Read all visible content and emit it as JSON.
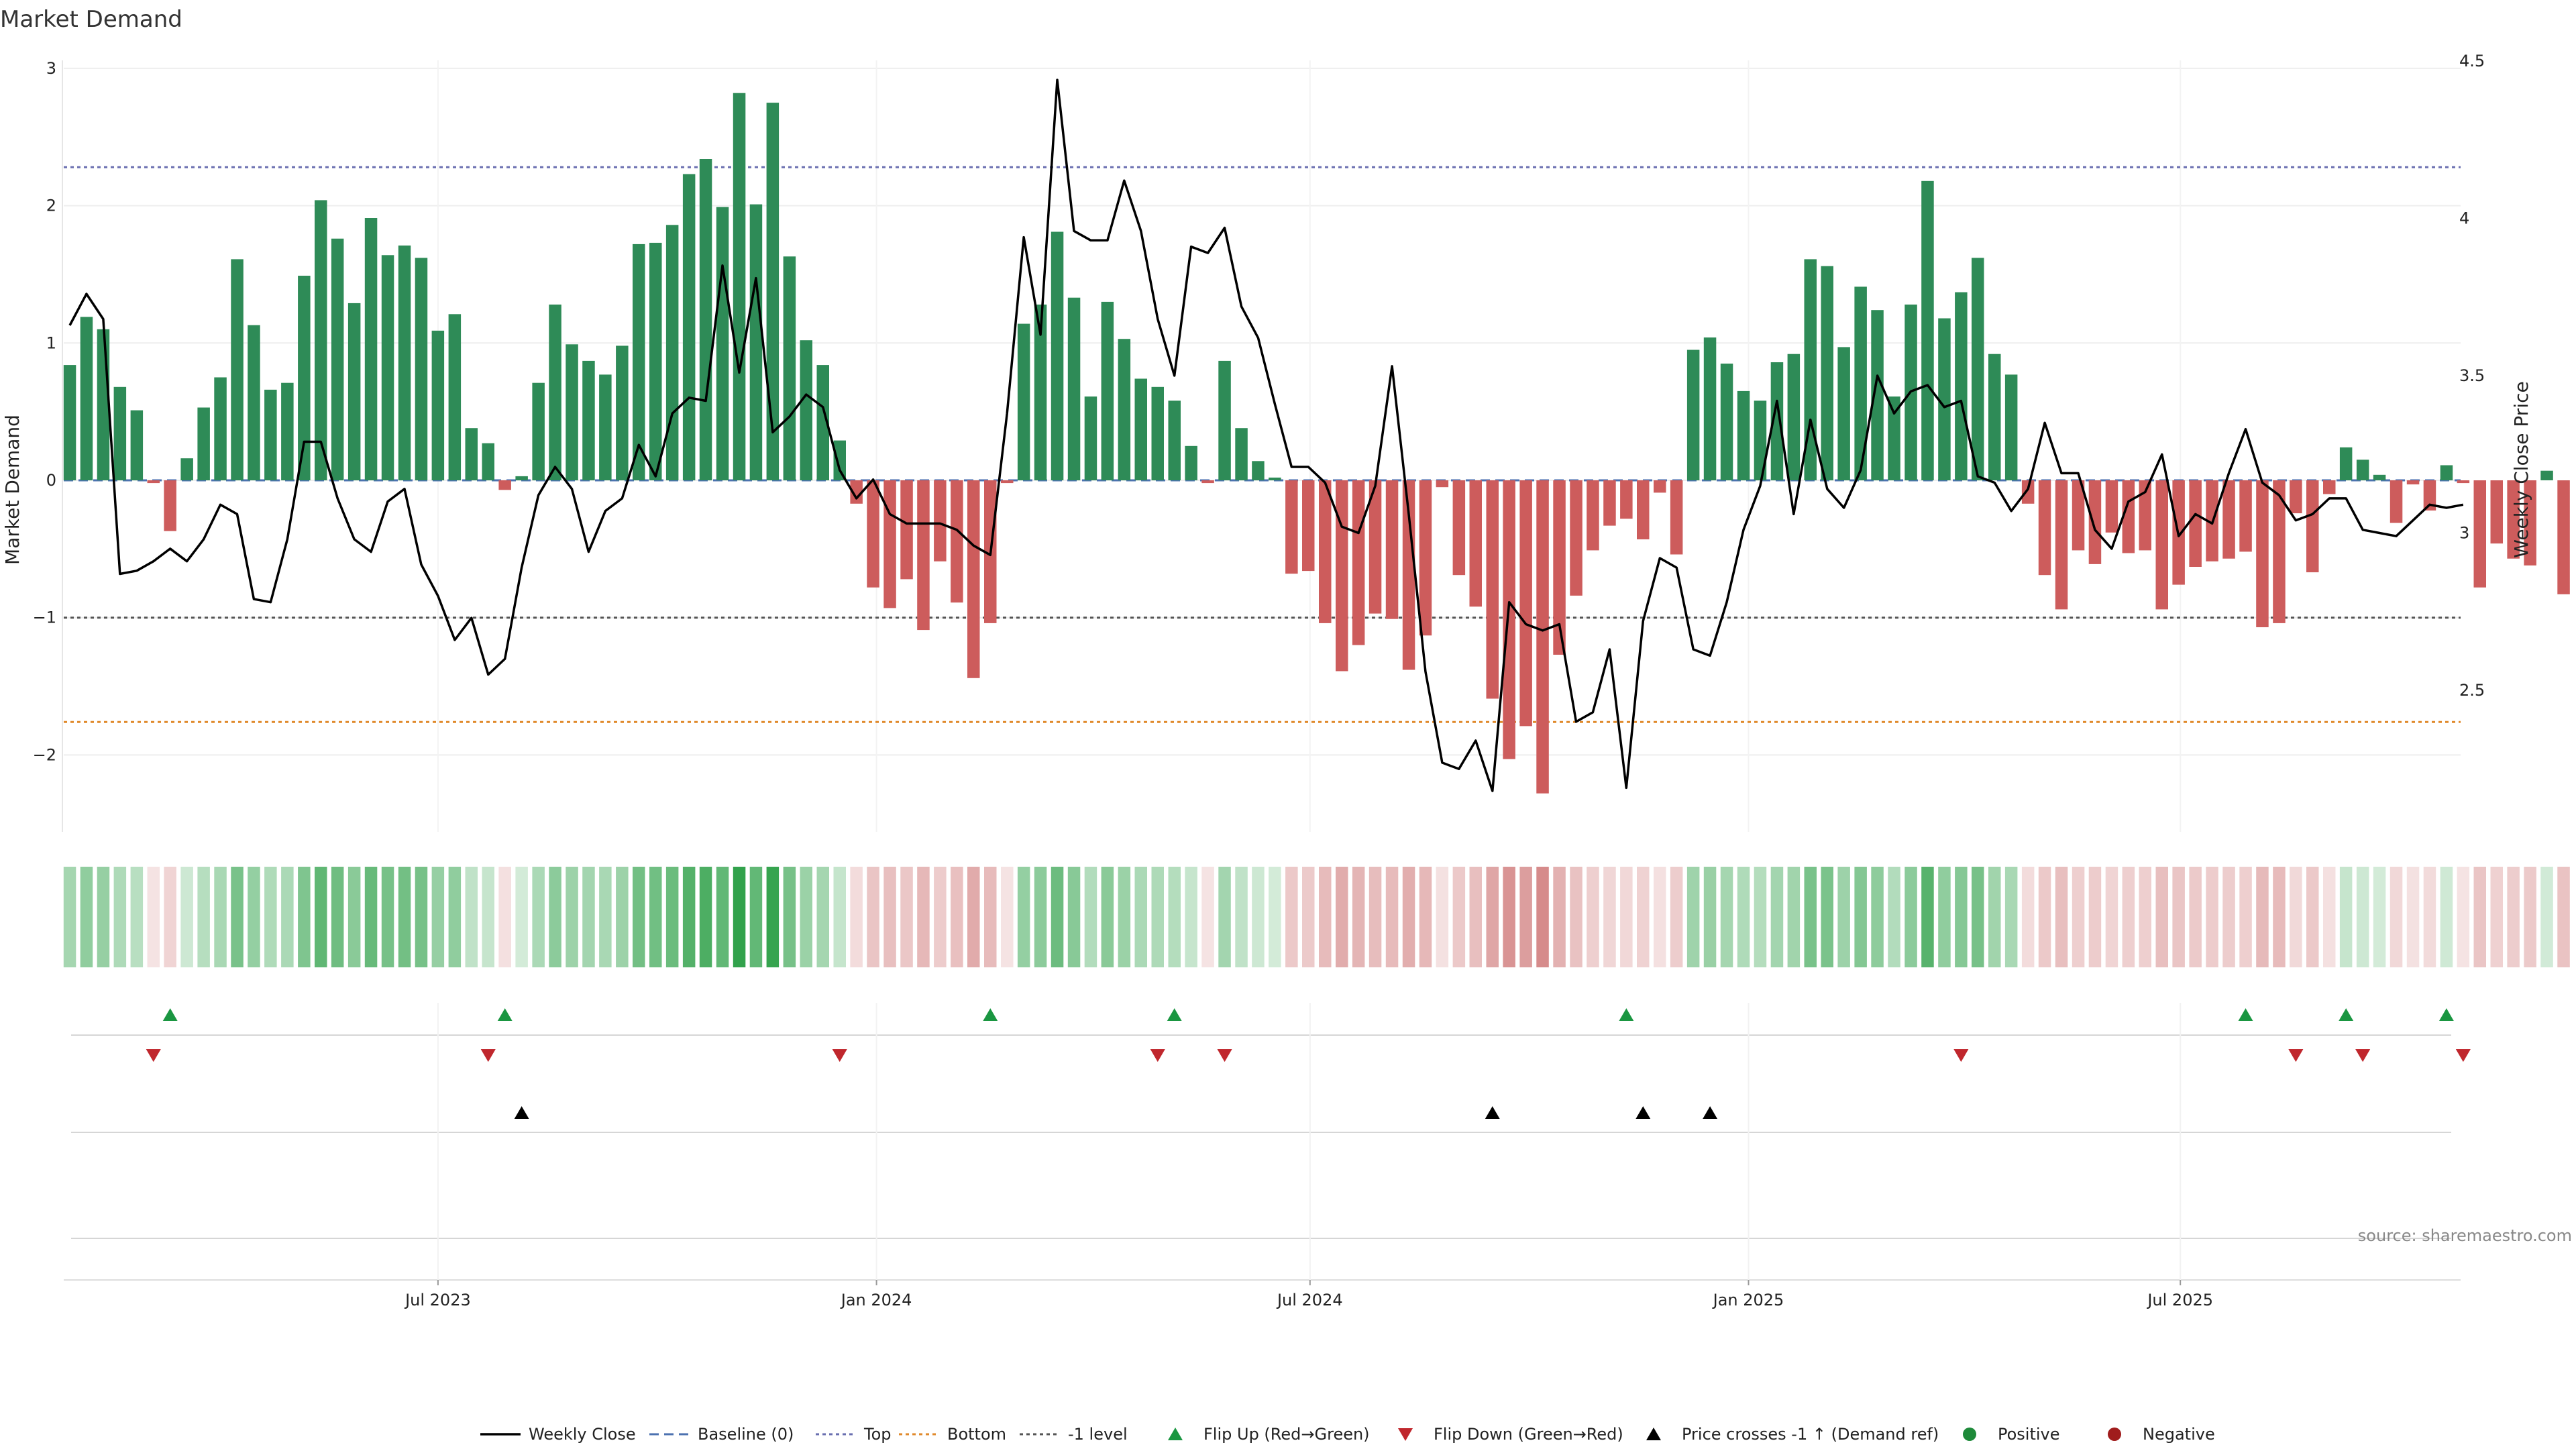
{
  "chart_data": {
    "type": "bar",
    "title": "Market Demand",
    "ylabel_left": "Market Demand",
    "ylabel_right": "Weekly Close Price",
    "source": "source: sharemaestro.com",
    "left_axis": {
      "range": [
        -2.55,
        3.0
      ],
      "ticks": [
        "3",
        "2",
        "1",
        "0",
        "−1",
        "−2"
      ],
      "tick_values": [
        3,
        2,
        1,
        0,
        -1,
        -2
      ]
    },
    "right_axis": {
      "range": [
        2.0,
        4.5
      ],
      "ticks": [
        "4.5",
        "4",
        "3.5",
        "3",
        "2.5"
      ],
      "tick_values": [
        4.5,
        4.0,
        3.5,
        3.0,
        2.5
      ]
    },
    "x_axis": {
      "start_week": 0,
      "weeks": 144,
      "ticks": [
        {
          "label": "Jul 2023",
          "week": 22
        },
        {
          "label": "Jan 2024",
          "week": 48.2
        },
        {
          "label": "Jul 2024",
          "week": 74.1
        },
        {
          "label": "Jan 2025",
          "week": 100.3
        },
        {
          "label": "Jul 2025",
          "week": 126.1
        }
      ]
    },
    "reference_lines": [
      {
        "name": "Baseline (0)",
        "value": 0,
        "color": "#4c72b0",
        "style": "dashed"
      },
      {
        "name": "Top",
        "value": 2.28,
        "color": "#6a6fb0",
        "style": "dotted"
      },
      {
        "name": "Bottom",
        "value": -1.76,
        "color": "#e08a2c",
        "style": "dotted"
      },
      {
        "name": "-1 level",
        "value": -1.0,
        "color": "#555555",
        "style": "dotted"
      }
    ],
    "demand": [
      0.84,
      1.19,
      1.1,
      0.68,
      0.51,
      -0.02,
      -0.37,
      0.16,
      0.53,
      0.75,
      1.61,
      1.13,
      0.66,
      0.71,
      1.49,
      2.04,
      1.76,
      1.29,
      1.91,
      1.64,
      1.71,
      1.62,
      1.09,
      1.21,
      0.38,
      0.27,
      -0.07,
      0.03,
      0.71,
      1.28,
      0.99,
      0.87,
      0.77,
      0.98,
      1.72,
      1.73,
      1.86,
      2.23,
      2.34,
      1.99,
      2.82,
      2.01,
      2.75,
      1.63,
      1.02,
      0.84,
      0.29,
      -0.17,
      -0.78,
      -0.93,
      -0.72,
      -1.09,
      -0.59,
      -0.89,
      -1.44,
      -1.04,
      -0.02,
      1.14,
      1.28,
      1.81,
      1.33,
      0.61,
      1.3,
      1.03,
      0.74,
      0.68,
      0.58,
      0.25,
      -0.02,
      0.87,
      0.38,
      0.14,
      0.02,
      -0.68,
      -0.66,
      -1.04,
      -1.39,
      -1.2,
      -0.97,
      -1.01,
      -1.38,
      -1.13,
      -0.05,
      -0.69,
      -0.92,
      -1.59,
      -2.03,
      -1.79,
      -2.28,
      -1.27,
      -0.84,
      -0.51,
      -0.33,
      -0.28,
      -0.43,
      -0.09,
      -0.54,
      0.95,
      1.04,
      0.85,
      0.65,
      0.58,
      0.86,
      0.92,
      1.61,
      1.56,
      0.97,
      1.41,
      1.24,
      0.61,
      1.28,
      2.18,
      1.18,
      1.37,
      1.62,
      0.92,
      0.77,
      -0.17,
      -0.69,
      -0.94,
      -0.51,
      -0.61,
      -0.38,
      -0.53,
      -0.51,
      -0.94,
      -0.76,
      -0.63,
      -0.59,
      -0.57,
      -0.52,
      -1.07,
      -1.04,
      -0.24,
      -0.67,
      -0.1,
      0.24,
      0.15,
      0.04,
      -0.31,
      -0.03,
      -0.22,
      0.11,
      -0.02,
      -0.78,
      -0.46,
      -0.57,
      -0.62,
      0.07,
      -0.83
    ],
    "weekly_close": [
      3.66,
      3.76,
      3.68,
      2.87,
      2.88,
      2.91,
      2.95,
      2.91,
      2.98,
      3.09,
      3.06,
      2.79,
      2.78,
      2.98,
      3.29,
      3.29,
      3.11,
      2.98,
      2.94,
      3.1,
      3.14,
      2.9,
      2.8,
      2.66,
      2.73,
      2.55,
      2.6,
      2.89,
      3.12,
      3.21,
      3.14,
      2.94,
      3.07,
      3.11,
      3.28,
      3.18,
      3.38,
      3.43,
      3.42,
      3.85,
      3.51,
      3.81,
      3.32,
      3.37,
      3.44,
      3.4,
      3.2,
      3.11,
      3.17,
      3.06,
      3.03,
      3.03,
      3.03,
      3.01,
      2.96,
      2.93,
      3.38,
      3.94,
      3.63,
      4.44,
      3.96,
      3.93,
      3.93,
      4.12,
      3.96,
      3.68,
      3.5,
      3.91,
      3.89,
      3.97,
      3.72,
      3.62,
      3.41,
      3.21,
      3.21,
      3.16,
      3.02,
      3.0,
      3.15,
      3.53,
      3.06,
      2.56,
      2.27,
      2.25,
      2.34,
      2.18,
      2.78,
      2.71,
      2.69,
      2.71,
      2.4,
      2.43,
      2.63,
      2.19,
      2.72,
      2.92,
      2.89,
      2.63,
      2.61,
      2.78,
      3.01,
      3.15,
      3.42,
      3.06,
      3.36,
      3.14,
      3.08,
      3.2,
      3.5,
      3.38,
      3.45,
      3.47,
      3.4,
      3.42,
      3.18,
      3.16,
      3.07,
      3.14,
      3.35,
      3.19,
      3.19,
      3.01,
      2.95,
      3.1,
      3.13,
      3.25,
      2.99,
      3.06,
      3.03,
      3.19,
      3.33,
      3.16,
      3.12,
      3.04,
      3.06,
      3.11,
      3.11,
      3.01,
      3.0,
      2.99,
      3.04,
      3.09,
      3.08,
      3.09
    ],
    "strip": {
      "rows": [
        "Flip Up / Flip Down",
        "Price crosses -1",
        "Positive / Negative"
      ],
      "flip_up_weeks": [
        6,
        26,
        55,
        66,
        93,
        130,
        136,
        142
      ],
      "flip_down_weeks": [
        5,
        25,
        46,
        65,
        69,
        113,
        133,
        137,
        143
      ],
      "price_cross_weeks": [
        27,
        85,
        94,
        98
      ]
    },
    "legend": [
      {
        "label": "Weekly Close",
        "kind": "line",
        "color": "#000000"
      },
      {
        "label": "Baseline (0)",
        "kind": "dash",
        "color": "#4c72b0"
      },
      {
        "label": "Top",
        "kind": "dot",
        "color": "#6a6fb0"
      },
      {
        "label": "Bottom",
        "kind": "dot",
        "color": "#e08a2c"
      },
      {
        "label": "-1 level",
        "kind": "dot",
        "color": "#555555"
      },
      {
        "label": "Flip Up (Red→Green)",
        "kind": "tri-up",
        "color": "#1a9641"
      },
      {
        "label": "Flip Down (Green→Red)",
        "kind": "tri-down",
        "color": "#c0272d"
      },
      {
        "label": "Price crosses -1 ↑ (Demand ref)",
        "kind": "tri-up",
        "color": "#000000"
      },
      {
        "label": "Positive",
        "kind": "circle",
        "color": "#1e8a3a"
      },
      {
        "label": "Negative",
        "kind": "circle",
        "color": "#a01c1c"
      }
    ],
    "colors": {
      "positive_bar": "#2e8b57",
      "negative_bar": "#cd5c5c",
      "price_line": "#000000",
      "grid": "#eeeeee"
    }
  }
}
